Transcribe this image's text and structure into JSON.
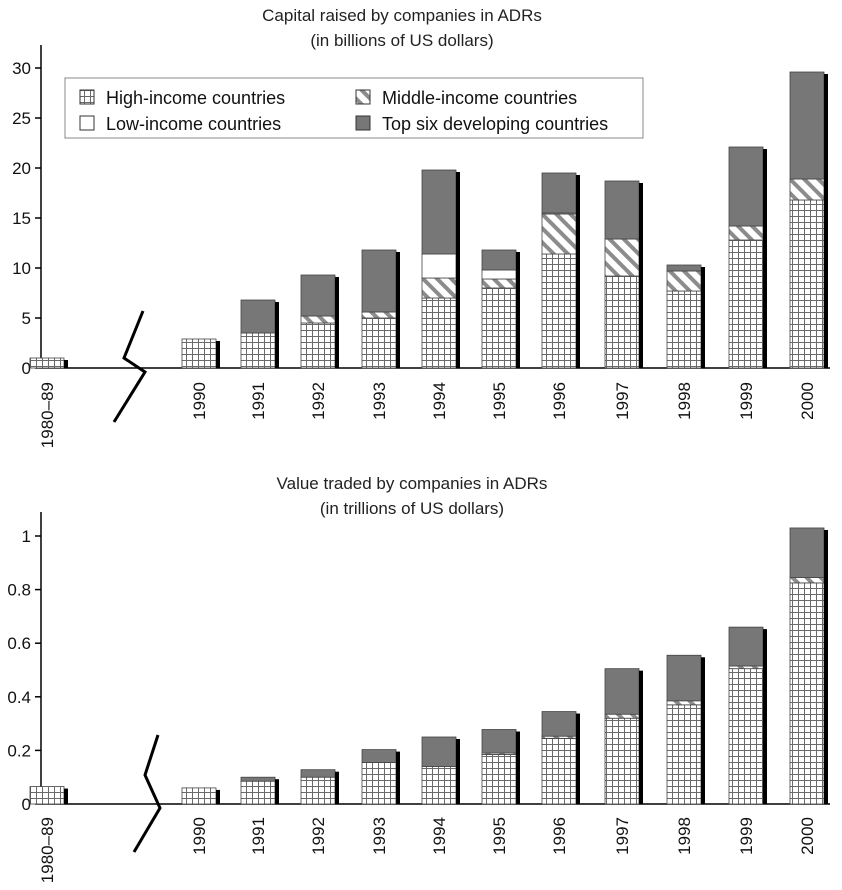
{
  "chart_data": [
    {
      "type": "bar",
      "stacked": true,
      "title": "Capital raised by companies in ADRs",
      "subtitle": "(in billions of US dollars)",
      "categories": [
        "1980–89",
        "1990",
        "1991",
        "1992",
        "1993",
        "1994",
        "1995",
        "1996",
        "1997",
        "1998",
        "1999",
        "2000"
      ],
      "series": [
        {
          "name": "High-income countries",
          "values": [
            1.0,
            2.9,
            3.5,
            4.5,
            5.0,
            7.0,
            8.0,
            11.4,
            9.2,
            7.7,
            12.8,
            16.8
          ]
        },
        {
          "name": "Middle-income countries",
          "values": [
            0,
            0,
            0,
            0.7,
            0.6,
            2.0,
            0.9,
            4.0,
            3.7,
            2.0,
            1.4,
            2.1
          ]
        },
        {
          "name": "Low-income countries",
          "values": [
            0,
            0,
            0,
            0,
            0,
            2.4,
            0.9,
            0.1,
            0,
            0,
            0,
            0
          ]
        },
        {
          "name": "Top six developing countries",
          "values": [
            0,
            0,
            3.3,
            4.1,
            6.2,
            8.4,
            2.0,
            4.0,
            5.8,
            0.6,
            7.9,
            10.7
          ]
        }
      ],
      "ylim": [
        0,
        32
      ],
      "yticks": [
        "0",
        "5",
        "10",
        "15",
        "20",
        "25",
        "30"
      ],
      "legend": {
        "placement": "top-left",
        "entries": [
          {
            "label": "High-income countries",
            "pattern": "grid"
          },
          {
            "label": "Middle-income countries",
            "pattern": "hatch"
          },
          {
            "label": "Low-income countries",
            "pattern": "white"
          },
          {
            "label": "Top six developing countries",
            "pattern": "dark"
          }
        ]
      },
      "axis_break_after": "1980–89"
    },
    {
      "type": "bar",
      "stacked": true,
      "title": "Value traded by companies in ADRs",
      "subtitle": "(in trillions of US dollars)",
      "categories": [
        "1980–89",
        "1990",
        "1991",
        "1992",
        "1993",
        "1994",
        "1995",
        "1996",
        "1997",
        "1998",
        "1999",
        "2000"
      ],
      "series": [
        {
          "name": "High-income countries",
          "values": [
            0.065,
            0.06,
            0.085,
            0.1,
            0.155,
            0.14,
            0.185,
            0.245,
            0.32,
            0.37,
            0.505,
            0.825
          ]
        },
        {
          "name": "Middle-income countries",
          "values": [
            0,
            0,
            0,
            0,
            0,
            0,
            0.005,
            0.008,
            0.015,
            0.015,
            0.01,
            0.02
          ]
        },
        {
          "name": "Low-income countries",
          "values": [
            0,
            0,
            0,
            0,
            0,
            0,
            0,
            0,
            0,
            0,
            0,
            0
          ]
        },
        {
          "name": "Top six developing countries",
          "values": [
            0,
            0,
            0.015,
            0.028,
            0.048,
            0.11,
            0.088,
            0.092,
            0.17,
            0.17,
            0.145,
            0.185
          ]
        }
      ],
      "ylim": [
        0,
        1.05
      ],
      "yticks": [
        "0",
        "0.2",
        "0.4",
        "0.6",
        "0.8",
        "1"
      ],
      "axis_break_after": "1980–89"
    }
  ]
}
